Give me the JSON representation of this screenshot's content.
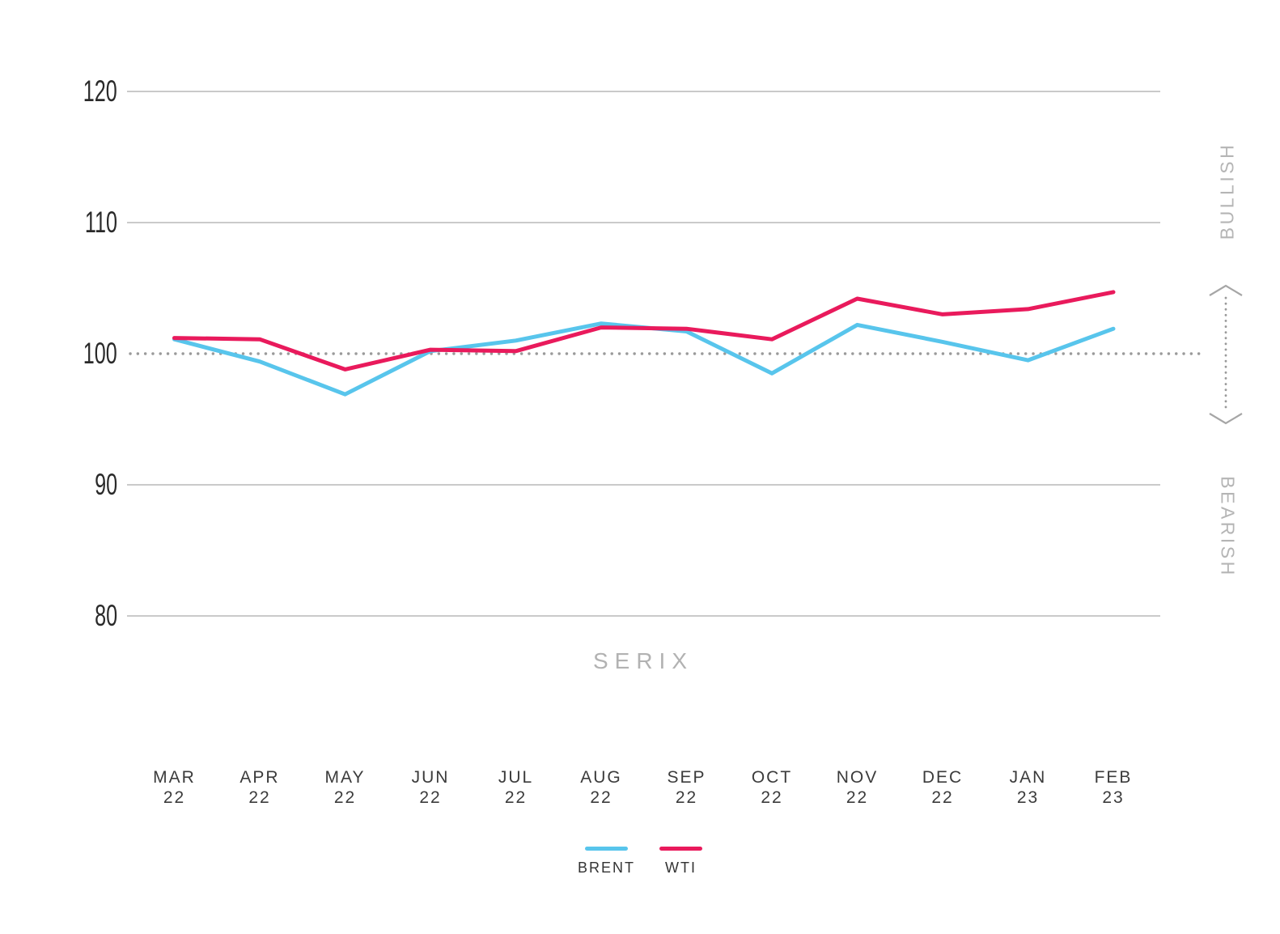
{
  "watermark": "SERIX",
  "colors": {
    "brent": "#58C5EC",
    "wti": "#E91A5C",
    "grid": "#949494",
    "baseline_dots": "#9a9a9a",
    "annotation_gray": "#b5b5b5",
    "tick_text": "#2a2a2a",
    "category_text": "#3b3b3b"
  },
  "chart_data": {
    "type": "line",
    "title": "",
    "xlabel": "",
    "ylabel": "",
    "x_categories": [
      {
        "month": "MAR",
        "year": "22"
      },
      {
        "month": "APR",
        "year": "22"
      },
      {
        "month": "MAY",
        "year": "22"
      },
      {
        "month": "JUN",
        "year": "22"
      },
      {
        "month": "JUL",
        "year": "22"
      },
      {
        "month": "AUG",
        "year": "22"
      },
      {
        "month": "SEP",
        "year": "22"
      },
      {
        "month": "OCT",
        "year": "22"
      },
      {
        "month": "NOV",
        "year": "22"
      },
      {
        "month": "DEC",
        "year": "22"
      },
      {
        "month": "JAN",
        "year": "23"
      },
      {
        "month": "FEB",
        "year": "23"
      }
    ],
    "series": [
      {
        "name": "BRENT",
        "color": "#58C5EC",
        "values": [
          101.1,
          99.4,
          96.9,
          100.2,
          101.0,
          102.3,
          101.7,
          98.5,
          102.2,
          100.9,
          99.5,
          101.9
        ]
      },
      {
        "name": "WTI",
        "color": "#E91A5C",
        "values": [
          101.2,
          101.1,
          98.8,
          100.3,
          100.2,
          102.0,
          101.9,
          101.1,
          104.2,
          103.0,
          103.4,
          104.7
        ]
      }
    ],
    "yticks": [
      120,
      110,
      100,
      90,
      80
    ],
    "ylim": [
      76,
      124
    ],
    "baseline": 100,
    "baseline_style": "dotted",
    "grid": "horizontal-only",
    "legend_position": "bottom-center",
    "annotations": {
      "watermark": "SERIX",
      "right_top": "BULLISH",
      "right_bottom": "BEARISH"
    }
  }
}
